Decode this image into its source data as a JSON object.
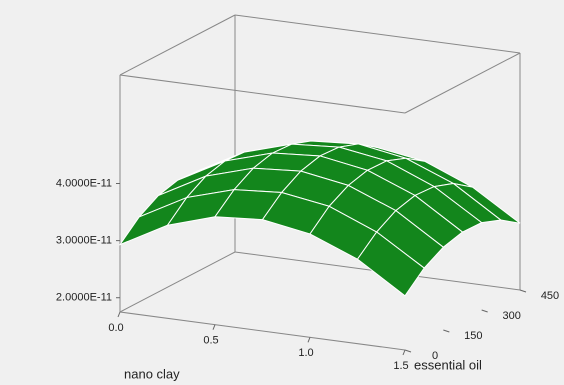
{
  "chart_data": {
    "type": "surface",
    "xlabel": "nano clay",
    "ylabel": "essential oil",
    "x": [
      0,
      0.25,
      0.5,
      0.75,
      1.0,
      1.25,
      1.5
    ],
    "y": [
      0,
      75,
      150,
      225,
      300,
      375,
      450
    ],
    "z": [
      [
        2.93e-11,
        3.24e-11,
        3.44e-11,
        3.53e-11,
        3.51e-11,
        3.38e-11,
        3.15e-11
      ],
      [
        3.38e-11,
        3.69e-11,
        3.89e-11,
        3.98e-11,
        3.96e-11,
        3.83e-11,
        3.6e-11
      ],
      [
        3.64e-11,
        3.94e-11,
        4.14e-11,
        4.23e-11,
        4.21e-11,
        4.09e-11,
        3.85e-11
      ],
      [
        3.7e-11,
        4e-11,
        4.2e-11,
        4.29e-11,
        4.27e-11,
        4.15e-11,
        3.91e-11
      ],
      [
        3.56e-11,
        3.87e-11,
        4.06e-11,
        4.15e-11,
        4.14e-11,
        4.01e-11,
        3.78e-11
      ],
      [
        3.23e-11,
        3.53e-11,
        3.73e-11,
        3.82e-11,
        3.8e-11,
        3.68e-11,
        3.44e-11
      ],
      [
        2.7e-11,
        3.01e-11,
        3.2e-11,
        3.29e-11,
        3.28e-11,
        3.15e-11,
        2.92e-11
      ]
    ],
    "color": "#13861c",
    "xlim": [
      0,
      1.5
    ],
    "ylim": [
      0,
      450
    ],
    "zlim": [
      1.75e-11,
      5.9e-11
    ],
    "xticks": [
      {
        "value": 0,
        "label": "0.0"
      },
      {
        "value": 0.5,
        "label": "0.5"
      },
      {
        "value": 1,
        "label": "1.0"
      },
      {
        "value": 1.5,
        "label": "1.5"
      }
    ],
    "yticks": [
      0,
      150,
      300,
      450
    ],
    "zticks": [
      {
        "value": 2e-11,
        "label": "2.0000E-11"
      },
      {
        "value": 3e-11,
        "label": "3.0000E-11"
      },
      {
        "value": 4e-11,
        "label": "4.0000E-11"
      }
    ]
  }
}
